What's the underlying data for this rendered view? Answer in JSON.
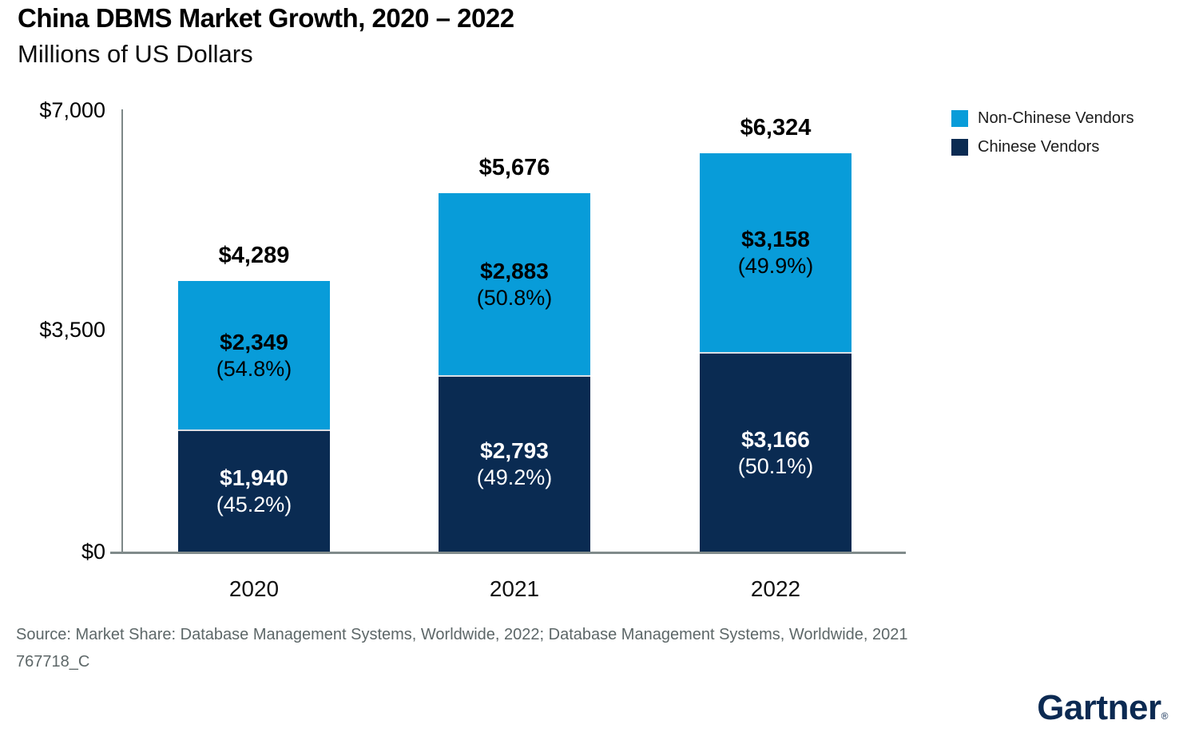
{
  "header": {
    "title": "China DBMS Market Growth, 2020 – 2022",
    "subtitle": "Millions of US Dollars"
  },
  "chart_data": {
    "type": "bar",
    "stacked": true,
    "title": "China DBMS Market Growth, 2020 – 2022",
    "units": "Millions of US Dollars",
    "categories": [
      "2020",
      "2021",
      "2022"
    ],
    "series": [
      {
        "name": "Chinese Vendors",
        "color": "#0A2B52",
        "label_color": "#FFFFFF",
        "values": [
          1940,
          2793,
          3166
        ],
        "value_labels": [
          "$1,940",
          "$2,793",
          "$3,166"
        ],
        "share_labels": [
          "(45.2%)",
          "(49.2%)",
          "(50.1%)"
        ]
      },
      {
        "name": "Non-Chinese Vendors",
        "color": "#089CD9",
        "label_color": "#000000",
        "values": [
          2349,
          2883,
          3158
        ],
        "value_labels": [
          "$2,349",
          "$2,883",
          "$3,158"
        ],
        "share_labels": [
          "(54.8%)",
          "(50.8%)",
          "(49.9%)"
        ]
      }
    ],
    "totals": [
      4289,
      5676,
      6324
    ],
    "total_labels": [
      "$4,289",
      "$5,676",
      "$6,324"
    ],
    "ylim": [
      0,
      7000
    ],
    "y_ticks": [
      "$7,000",
      "$3,500",
      "$0"
    ],
    "grid": false,
    "legend_position": "top-right",
    "legend": [
      {
        "label": "Non-Chinese Vendors",
        "color": "#089CD9"
      },
      {
        "label": "Chinese Vendors",
        "color": "#0A2B52"
      }
    ]
  },
  "footer": {
    "source": "Source: Market Share: Database Management Systems, Worldwide, 2022; Database Management Systems, Worldwide, 2021",
    "doc_id": "767718_C",
    "logo_text": "Gartner",
    "logo_mark": "®"
  }
}
